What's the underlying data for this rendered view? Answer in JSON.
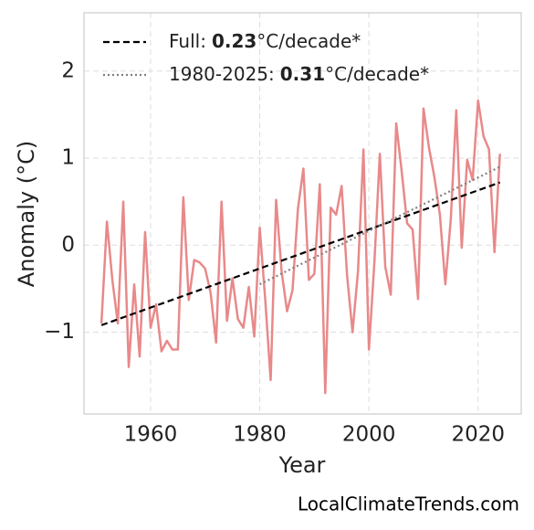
{
  "chart_data": {
    "type": "line",
    "x_label": "Year",
    "y_label": "Anomaly (°C)",
    "footer": "LocalClimateTrends.com",
    "x": [
      1951,
      1952,
      1953,
      1954,
      1955,
      1956,
      1957,
      1958,
      1959,
      1960,
      1961,
      1962,
      1963,
      1964,
      1965,
      1966,
      1967,
      1968,
      1969,
      1970,
      1971,
      1972,
      1973,
      1974,
      1975,
      1976,
      1977,
      1978,
      1979,
      1980,
      1981,
      1982,
      1983,
      1984,
      1985,
      1986,
      1987,
      1988,
      1989,
      1990,
      1991,
      1992,
      1993,
      1994,
      1995,
      1996,
      1997,
      1998,
      1999,
      2000,
      2001,
      2002,
      2003,
      2004,
      2005,
      2006,
      2007,
      2008,
      2009,
      2010,
      2011,
      2012,
      2013,
      2014,
      2015,
      2016,
      2017,
      2018,
      2019,
      2020,
      2021,
      2022,
      2023,
      2024
    ],
    "values": [
      -0.9,
      0.27,
      -0.4,
      -0.9,
      0.5,
      -1.4,
      -0.45,
      -1.28,
      0.15,
      -0.95,
      -0.68,
      -1.22,
      -1.1,
      -1.2,
      -1.2,
      0.55,
      -0.63,
      -0.17,
      -0.2,
      -0.27,
      -0.55,
      -1.12,
      0.5,
      -0.87,
      -0.38,
      -0.85,
      -0.95,
      -0.48,
      -1.05,
      0.2,
      -0.62,
      -1.55,
      0.52,
      -0.3,
      -0.76,
      -0.52,
      0.42,
      0.88,
      -0.4,
      -0.33,
      0.7,
      -1.7,
      0.43,
      0.35,
      0.68,
      -0.35,
      -1.0,
      -0.3,
      1.1,
      -1.2,
      -0.2,
      1.05,
      -0.25,
      -0.57,
      1.4,
      0.85,
      0.25,
      0.18,
      -0.62,
      1.57,
      1.12,
      0.78,
      0.35,
      -0.45,
      0.3,
      1.55,
      -0.03,
      0.98,
      0.75,
      1.66,
      1.25,
      1.1,
      -0.08,
      1.05
    ],
    "color": "#e8898a",
    "trends": [
      {
        "name": "Full:",
        "slope": 0.23,
        "slope_unit": "°C/decade*",
        "color": "#000000",
        "style": "dashed",
        "x": [
          1951,
          2024
        ],
        "values": [
          -0.92,
          0.72
        ]
      },
      {
        "name": "1980-2025:",
        "slope": 0.31,
        "slope_unit": "°C/decade*",
        "color": "#808080",
        "style": "dotted",
        "x": [
          1980,
          2024
        ],
        "values": [
          -0.45,
          0.9
        ]
      }
    ],
    "xlim": [
      1947.8,
      2027.9
    ],
    "xticks": [
      1960,
      1980,
      2000,
      2020
    ],
    "ylim": [
      -1.94,
      2.67
    ],
    "yticks": [
      {
        "value": -1,
        "label": "−1"
      },
      0,
      1,
      2
    ],
    "grid": true,
    "legend": "upper left"
  }
}
